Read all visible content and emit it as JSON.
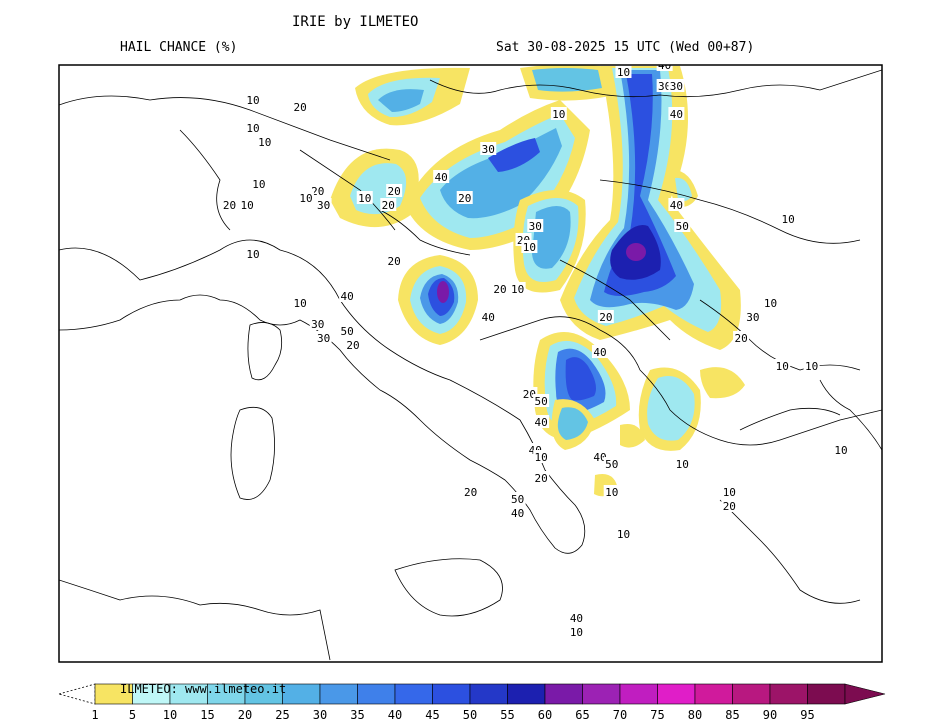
{
  "header": {
    "model_title": "IRIE by ILMETEO",
    "variable": "HAIL CHANCE (%)",
    "valid_time": "Sat 30-08-2025 15 UTC (Wed 00+87)"
  },
  "legend": {
    "credit": "ILMETEO: www.ilmeteo.it",
    "ticks": [
      "1",
      "5",
      "10",
      "15",
      "20",
      "25",
      "30",
      "35",
      "40",
      "45",
      "50",
      "55",
      "60",
      "65",
      "70",
      "75",
      "80",
      "85",
      "90",
      "95"
    ],
    "colors": [
      "#f7e463",
      "#bff7f7",
      "#9fe8f0",
      "#7fd6ea",
      "#63c4e4",
      "#53b0e6",
      "#4a98e8",
      "#3f80ea",
      "#3568ea",
      "#2c50e0",
      "#2438c8",
      "#1c20b0",
      "#7a1aa8",
      "#9c22b4",
      "#c01ec0",
      "#e01ec8",
      "#d01a9c",
      "#b81880",
      "#9c1468",
      "#7c0c50"
    ]
  },
  "map": {
    "contour_labels": [
      {
        "text": "10",
        "lon": 9.3,
        "lat": 47.0
      },
      {
        "text": "20",
        "lon": 10.1,
        "lat": 46.9
      },
      {
        "text": "10",
        "lon": 9.3,
        "lat": 46.6
      },
      {
        "text": "10",
        "lon": 9.5,
        "lat": 46.4
      },
      {
        "text": "10",
        "lon": 9.4,
        "lat": 45.8
      },
      {
        "text": "20",
        "lon": 8.9,
        "lat": 45.5
      },
      {
        "text": "10",
        "lon": 9.2,
        "lat": 45.5
      },
      {
        "text": "20",
        "lon": 10.4,
        "lat": 45.7
      },
      {
        "text": "10",
        "lon": 10.2,
        "lat": 45.6
      },
      {
        "text": "30",
        "lon": 10.5,
        "lat": 45.5
      },
      {
        "text": "10",
        "lon": 11.2,
        "lat": 45.6
      },
      {
        "text": "20",
        "lon": 11.6,
        "lat": 45.5
      },
      {
        "text": "20",
        "lon": 11.7,
        "lat": 45.7
      },
      {
        "text": "40",
        "lon": 12.5,
        "lat": 45.9
      },
      {
        "text": "30",
        "lon": 13.3,
        "lat": 46.3
      },
      {
        "text": "20",
        "lon": 12.9,
        "lat": 45.6
      },
      {
        "text": "10",
        "lon": 14.5,
        "lat": 46.8
      },
      {
        "text": "10",
        "lon": 15.6,
        "lat": 47.4
      },
      {
        "text": "40",
        "lon": 16.3,
        "lat": 47.5
      },
      {
        "text": "30",
        "lon": 16.3,
        "lat": 47.2
      },
      {
        "text": "30",
        "lon": 16.5,
        "lat": 47.2
      },
      {
        "text": "40",
        "lon": 16.5,
        "lat": 46.8
      },
      {
        "text": "30",
        "lon": 14.1,
        "lat": 45.2
      },
      {
        "text": "20",
        "lon": 13.9,
        "lat": 45.0
      },
      {
        "text": "10",
        "lon": 14.0,
        "lat": 44.9
      },
      {
        "text": "20",
        "lon": 11.7,
        "lat": 44.7
      },
      {
        "text": "10",
        "lon": 9.3,
        "lat": 44.8
      },
      {
        "text": "10",
        "lon": 10.1,
        "lat": 44.1
      },
      {
        "text": "40",
        "lon": 10.9,
        "lat": 44.2
      },
      {
        "text": "30",
        "lon": 10.4,
        "lat": 43.8
      },
      {
        "text": "50",
        "lon": 10.9,
        "lat": 43.7
      },
      {
        "text": "30",
        "lon": 10.5,
        "lat": 43.6
      },
      {
        "text": "20",
        "lon": 11.0,
        "lat": 43.5
      },
      {
        "text": "20",
        "lon": 13.5,
        "lat": 44.3
      },
      {
        "text": "10",
        "lon": 13.8,
        "lat": 44.3
      },
      {
        "text": "40",
        "lon": 13.3,
        "lat": 43.9
      },
      {
        "text": "40",
        "lon": 16.5,
        "lat": 45.5
      },
      {
        "text": "50",
        "lon": 16.6,
        "lat": 45.2
      },
      {
        "text": "20",
        "lon": 15.3,
        "lat": 43.9
      },
      {
        "text": "40",
        "lon": 15.2,
        "lat": 43.4
      },
      {
        "text": "10",
        "lon": 18.1,
        "lat": 44.1
      },
      {
        "text": "30",
        "lon": 17.8,
        "lat": 43.9
      },
      {
        "text": "20",
        "lon": 17.6,
        "lat": 43.6
      },
      {
        "text": "10",
        "lon": 18.3,
        "lat": 43.2
      },
      {
        "text": "10",
        "lon": 18.8,
        "lat": 43.2
      },
      {
        "text": "10",
        "lon": 18.4,
        "lat": 45.3
      },
      {
        "text": "20",
        "lon": 14.0,
        "lat": 42.8
      },
      {
        "text": "50",
        "lon": 14.2,
        "lat": 42.7
      },
      {
        "text": "40",
        "lon": 14.2,
        "lat": 42.4
      },
      {
        "text": "40",
        "lon": 14.1,
        "lat": 42.0
      },
      {
        "text": "10",
        "lon": 14.2,
        "lat": 41.9
      },
      {
        "text": "40",
        "lon": 15.2,
        "lat": 41.9
      },
      {
        "text": "50",
        "lon": 15.4,
        "lat": 41.8
      },
      {
        "text": "20",
        "lon": 14.2,
        "lat": 41.6
      },
      {
        "text": "10",
        "lon": 15.4,
        "lat": 41.4
      },
      {
        "text": "20",
        "lon": 13.0,
        "lat": 41.4
      },
      {
        "text": "50",
        "lon": 13.8,
        "lat": 41.3
      },
      {
        "text": "40",
        "lon": 13.8,
        "lat": 41.1
      },
      {
        "text": "10",
        "lon": 16.6,
        "lat": 41.8
      },
      {
        "text": "10",
        "lon": 17.4,
        "lat": 41.4
      },
      {
        "text": "20",
        "lon": 17.4,
        "lat": 41.2
      },
      {
        "text": "10",
        "lon": 19.3,
        "lat": 42.0
      },
      {
        "text": "10",
        "lon": 15.6,
        "lat": 40.8
      },
      {
        "text": "40",
        "lon": 14.8,
        "lat": 39.6
      },
      {
        "text": "10",
        "lon": 14.8,
        "lat": 39.4
      }
    ]
  }
}
